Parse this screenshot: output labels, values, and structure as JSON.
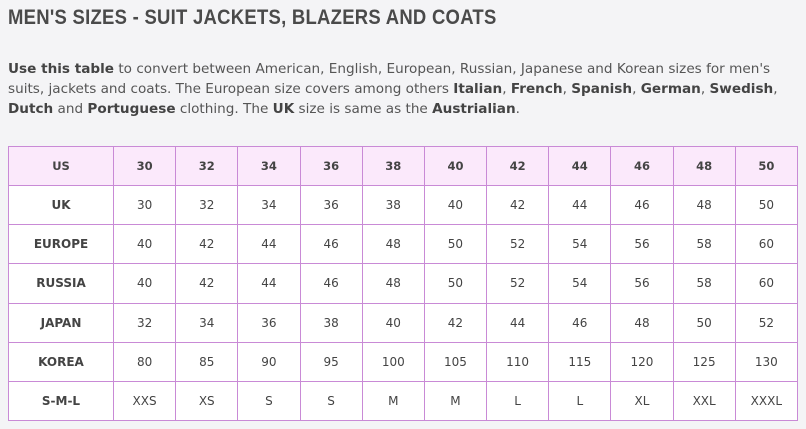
{
  "page": {
    "title": "MEN'S SIZES - SUIT JACKETS, BLAZERS AND COATS",
    "intro": [
      {
        "text": "Use this table",
        "bold": true
      },
      {
        "text": " to convert between American, English, European, Russian, Japanese and Korean sizes for men's suits, jackets and coats. The European size covers among others ",
        "bold": false
      },
      {
        "text": "Italian",
        "bold": true
      },
      {
        "text": ", ",
        "bold": false
      },
      {
        "text": "French",
        "bold": true
      },
      {
        "text": ", ",
        "bold": false
      },
      {
        "text": "Spanish",
        "bold": true
      },
      {
        "text": ", ",
        "bold": false
      },
      {
        "text": "German",
        "bold": true
      },
      {
        "text": ", ",
        "bold": false
      },
      {
        "text": "Swedish",
        "bold": true
      },
      {
        "text": ", ",
        "bold": false
      },
      {
        "text": "Dutch",
        "bold": true
      },
      {
        "text": " and ",
        "bold": false
      },
      {
        "text": "Portuguese",
        "bold": true
      },
      {
        "text": " clothing. The ",
        "bold": false
      },
      {
        "text": "UK",
        "bold": true
      },
      {
        "text": " size is same as the ",
        "bold": false
      },
      {
        "text": "Austrialian",
        "bold": true
      },
      {
        "text": ".",
        "bold": false
      }
    ]
  },
  "table": {
    "header": {
      "label": "US",
      "cells": [
        "30",
        "32",
        "34",
        "36",
        "38",
        "40",
        "42",
        "44",
        "46",
        "48",
        "50"
      ]
    },
    "rows": [
      {
        "label": "UK",
        "cells": [
          "30",
          "32",
          "34",
          "36",
          "38",
          "40",
          "42",
          "44",
          "46",
          "48",
          "50"
        ]
      },
      {
        "label": "EUROPE",
        "cells": [
          "40",
          "42",
          "44",
          "46",
          "48",
          "50",
          "52",
          "54",
          "56",
          "58",
          "60"
        ]
      },
      {
        "label": "RUSSIA",
        "cells": [
          "40",
          "42",
          "44",
          "46",
          "48",
          "50",
          "52",
          "54",
          "56",
          "58",
          "60"
        ]
      },
      {
        "label": "JAPAN",
        "cells": [
          "32",
          "34",
          "36",
          "38",
          "40",
          "42",
          "44",
          "46",
          "48",
          "50",
          "52"
        ]
      },
      {
        "label": "KOREA",
        "cells": [
          "80",
          "85",
          "90",
          "95",
          "100",
          "105",
          "110",
          "115",
          "120",
          "125",
          "130"
        ]
      },
      {
        "label": "S-M-L",
        "cells": [
          "XXS",
          "XS",
          "S",
          "S",
          "M",
          "M",
          "L",
          "L",
          "XL",
          "XXL",
          "XXXL"
        ]
      }
    ]
  },
  "colors": {
    "border": "#c98ad6",
    "header_bg": "#fbe9fb",
    "page_bg": "#f4f4f6"
  }
}
